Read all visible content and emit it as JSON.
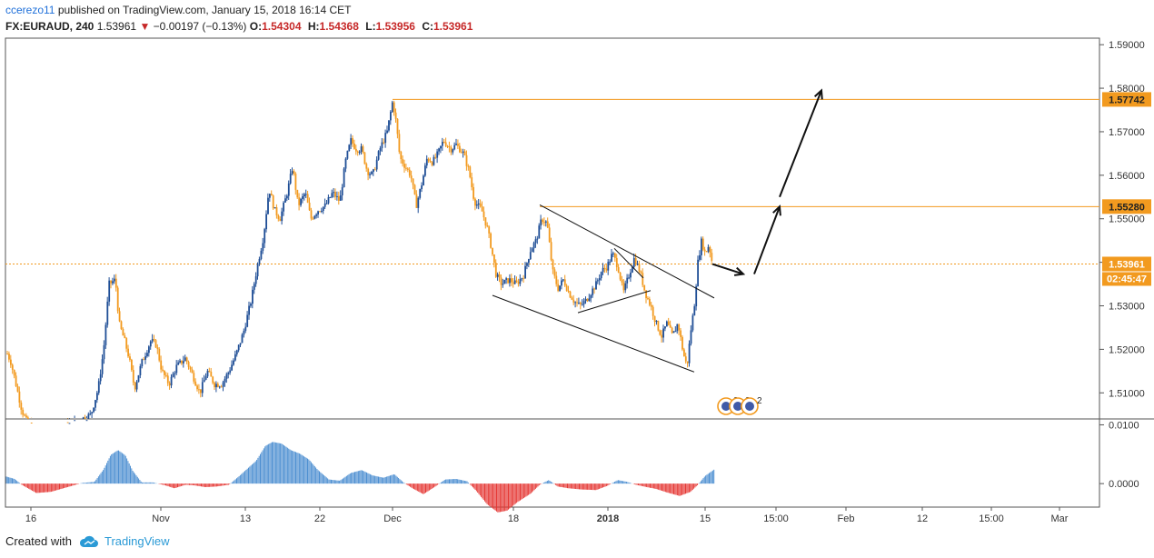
{
  "header": {
    "author": "ccerezo11",
    "published_text": "published on TradingView.com, January 15, 2018 16:14 CET",
    "symbol": "FX:EURAUD, 240",
    "last": "1.53961",
    "change": "−0.00197 (−0.13%)",
    "open_label": "O:",
    "open": "1.54304",
    "high_label": "H:",
    "high": "1.54368",
    "low_label": "L:",
    "low": "1.53956",
    "close_label": "C:",
    "close": "1.53961"
  },
  "footer": {
    "created_with": "Created with",
    "brand": "TradingView"
  },
  "colors": {
    "up": "#1f4e96",
    "down": "#f29a1f",
    "level": "#f29a1f",
    "osc_pos": "#4d8fd1",
    "osc_neg": "#e53935",
    "label_bg": "#f29a1f"
  },
  "chart_data": {
    "type": "candlestick",
    "price_axis": {
      "ticks": [
        1.51,
        1.52,
        1.53,
        1.54,
        1.55,
        1.56,
        1.57,
        1.58,
        1.59
      ],
      "range": [
        1.504,
        1.5915
      ]
    },
    "time_axis": {
      "labels": [
        "16",
        "Nov",
        "13",
        "22",
        "Dec",
        "18",
        "2018",
        "15",
        "15:00",
        "Feb",
        "12",
        "15:00",
        "Mar"
      ]
    },
    "price_labels": [
      {
        "price": 1.57742,
        "text": "1.57742"
      },
      {
        "price": 1.5528,
        "text": "1.55280"
      },
      {
        "price": 1.53961,
        "text": "1.53961"
      }
    ],
    "countdown": "02:45:47",
    "horizontal_levels": [
      1.57742,
      1.5528,
      1.53961
    ],
    "price_path": [
      [
        0,
        1.523
      ],
      [
        12,
        1.517
      ],
      [
        24,
        1.506
      ],
      [
        30,
        1.503
      ],
      [
        40,
        1.502
      ],
      [
        60,
        1.502
      ],
      [
        80,
        1.503
      ],
      [
        100,
        1.505
      ],
      [
        108,
        1.511
      ],
      [
        114,
        1.52
      ],
      [
        120,
        1.535
      ],
      [
        127,
        1.536
      ],
      [
        131,
        1.526
      ],
      [
        137,
        1.522
      ],
      [
        142,
        1.518
      ],
      [
        148,
        1.511
      ],
      [
        156,
        1.517
      ],
      [
        166,
        1.522
      ],
      [
        172,
        1.521
      ],
      [
        178,
        1.515
      ],
      [
        186,
        1.512
      ],
      [
        194,
        1.516
      ],
      [
        204,
        1.518
      ],
      [
        212,
        1.514
      ],
      [
        220,
        1.51
      ],
      [
        228,
        1.515
      ],
      [
        236,
        1.512
      ],
      [
        244,
        1.512
      ],
      [
        252,
        1.515
      ],
      [
        260,
        1.519
      ],
      [
        268,
        1.524
      ],
      [
        276,
        1.531
      ],
      [
        284,
        1.54
      ],
      [
        290,
        1.546
      ],
      [
        296,
        1.557
      ],
      [
        302,
        1.552
      ],
      [
        308,
        1.55
      ],
      [
        316,
        1.556
      ],
      [
        322,
        1.562
      ],
      [
        328,
        1.553
      ],
      [
        336,
        1.556
      ],
      [
        342,
        1.55
      ],
      [
        350,
        1.552
      ],
      [
        358,
        1.553
      ],
      [
        366,
        1.556
      ],
      [
        374,
        1.554
      ],
      [
        380,
        1.563
      ],
      [
        386,
        1.568
      ],
      [
        392,
        1.566
      ],
      [
        398,
        1.566
      ],
      [
        404,
        1.561
      ],
      [
        410,
        1.56
      ],
      [
        418,
        1.566
      ],
      [
        426,
        1.57
      ],
      [
        432,
        1.577
      ],
      [
        436,
        1.572
      ],
      [
        440,
        1.564
      ],
      [
        446,
        1.562
      ],
      [
        452,
        1.56
      ],
      [
        458,
        1.553
      ],
      [
        464,
        1.558
      ],
      [
        470,
        1.564
      ],
      [
        476,
        1.563
      ],
      [
        482,
        1.565
      ],
      [
        488,
        1.568
      ],
      [
        496,
        1.566
      ],
      [
        502,
        1.567
      ],
      [
        510,
        1.565
      ],
      [
        516,
        1.561
      ],
      [
        522,
        1.554
      ],
      [
        530,
        1.552
      ],
      [
        536,
        1.548
      ],
      [
        540,
        1.544
      ],
      [
        546,
        1.537
      ],
      [
        552,
        1.535
      ],
      [
        560,
        1.536
      ],
      [
        568,
        1.535
      ],
      [
        576,
        1.537
      ],
      [
        584,
        1.543
      ],
      [
        590,
        1.545
      ],
      [
        596,
        1.55
      ],
      [
        602,
        1.549
      ],
      [
        608,
        1.538
      ],
      [
        614,
        1.534
      ],
      [
        620,
        1.536
      ],
      [
        626,
        1.533
      ],
      [
        632,
        1.531
      ],
      [
        638,
        1.53
      ],
      [
        644,
        1.531
      ],
      [
        650,
        1.533
      ],
      [
        656,
        1.535
      ],
      [
        662,
        1.538
      ],
      [
        668,
        1.539
      ],
      [
        674,
        1.542
      ],
      [
        680,
        1.539
      ],
      [
        686,
        1.533
      ],
      [
        692,
        1.537
      ],
      [
        698,
        1.541
      ],
      [
        704,
        1.538
      ],
      [
        710,
        1.533
      ],
      [
        716,
        1.53
      ],
      [
        722,
        1.526
      ],
      [
        728,
        1.523
      ],
      [
        734,
        1.526
      ],
      [
        740,
        1.523
      ],
      [
        746,
        1.526
      ],
      [
        752,
        1.519
      ],
      [
        756,
        1.516
      ],
      [
        760,
        1.524
      ],
      [
        764,
        1.53
      ],
      [
        768,
        1.54
      ],
      [
        772,
        1.545
      ],
      [
        776,
        1.542
      ],
      [
        780,
        1.544
      ],
      [
        784,
        1.5396
      ]
    ],
    "oscillator": {
      "ticks": [
        0.0,
        0.01
      ],
      "range": [
        -0.004,
        0.011
      ],
      "values": [
        [
          0,
          0.0015
        ],
        [
          16,
          0.0008
        ],
        [
          24,
          -0.0002
        ],
        [
          40,
          -0.0016
        ],
        [
          56,
          -0.0014
        ],
        [
          72,
          -0.0007
        ],
        [
          90,
          0.0001
        ],
        [
          104,
          0.0003
        ],
        [
          114,
          0.0024
        ],
        [
          122,
          0.0049
        ],
        [
          130,
          0.0057
        ],
        [
          138,
          0.0048
        ],
        [
          146,
          0.0022
        ],
        [
          156,
          0.0002
        ],
        [
          168,
          0.0002
        ],
        [
          182,
          -0.0003
        ],
        [
          192,
          -0.0008
        ],
        [
          204,
          -0.0002
        ],
        [
          214,
          -0.0003
        ],
        [
          226,
          -0.0006
        ],
        [
          238,
          -0.0005
        ],
        [
          252,
          -0.0002
        ],
        [
          262,
          0.0011
        ],
        [
          272,
          0.0025
        ],
        [
          282,
          0.0039
        ],
        [
          292,
          0.0064
        ],
        [
          300,
          0.0071
        ],
        [
          310,
          0.0068
        ],
        [
          320,
          0.0057
        ],
        [
          330,
          0.0051
        ],
        [
          340,
          0.0041
        ],
        [
          350,
          0.0023
        ],
        [
          362,
          0.0007
        ],
        [
          374,
          0.0005
        ],
        [
          386,
          0.0018
        ],
        [
          398,
          0.0023
        ],
        [
          410,
          0.0014
        ],
        [
          422,
          0.001
        ],
        [
          434,
          0.0016
        ],
        [
          444,
          0.0002
        ],
        [
          454,
          -0.0008
        ],
        [
          466,
          -0.0018
        ],
        [
          478,
          -0.0006
        ],
        [
          490,
          0.0007
        ],
        [
          502,
          0.0008
        ],
        [
          514,
          0.0004
        ],
        [
          524,
          -0.0012
        ],
        [
          536,
          -0.0035
        ],
        [
          548,
          -0.0049
        ],
        [
          558,
          -0.0046
        ],
        [
          570,
          -0.0031
        ],
        [
          584,
          -0.0017
        ],
        [
          594,
          -0.0002
        ],
        [
          604,
          0.0006
        ],
        [
          614,
          -0.0005
        ],
        [
          626,
          -0.0008
        ],
        [
          640,
          -0.001
        ],
        [
          656,
          -0.0011
        ],
        [
          668,
          -0.0004
        ],
        [
          680,
          0.0006
        ],
        [
          690,
          0.0003
        ],
        [
          700,
          -0.0002
        ],
        [
          712,
          -0.0006
        ],
        [
          722,
          -0.0009
        ],
        [
          734,
          -0.0015
        ],
        [
          748,
          -0.0021
        ],
        [
          760,
          -0.0014
        ],
        [
          768,
          -0.0002
        ],
        [
          776,
          0.0013
        ],
        [
          786,
          0.0024
        ]
      ]
    },
    "drawings": {
      "channel_upper": [
        [
          594,
          1.5532
        ],
        [
          786,
          1.5318
        ]
      ],
      "channel_lower": [
        [
          542,
          1.5324
        ],
        [
          764,
          1.5148
        ]
      ],
      "triangle_top": [
        [
          676,
          1.5432
        ],
        [
          708,
          1.5364
        ]
      ],
      "triangle_bottom": [
        [
          636,
          1.5284
        ],
        [
          716,
          1.5335
        ]
      ],
      "projection_arrows": [
        [
          [
            784,
            1.5396
          ],
          [
            818,
            1.5373
          ]
        ],
        [
          [
            830,
            1.5373
          ],
          [
            858,
            1.5528
          ]
        ],
        [
          [
            858,
            1.555
          ],
          [
            904,
            1.5795
          ]
        ]
      ]
    },
    "event_badges": [
      "2",
      "2",
      "2"
    ]
  }
}
